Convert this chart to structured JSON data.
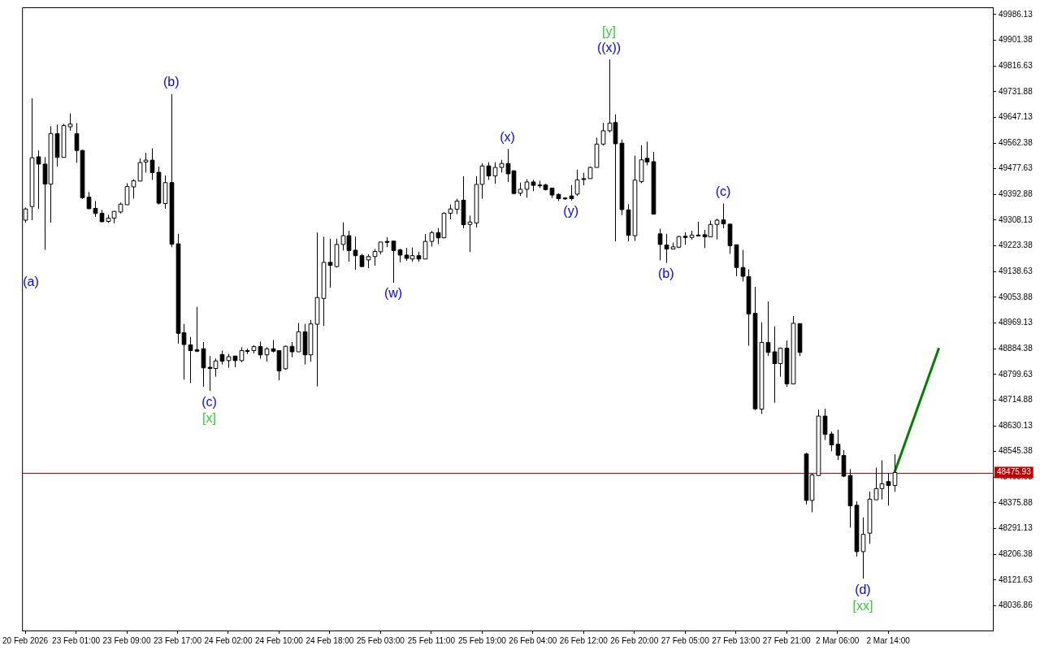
{
  "chart_data": {
    "type": "candlestick",
    "categories": [
      "20 Feb 2026",
      null,
      null,
      null,
      null,
      null,
      null,
      null,
      "23 Feb 01:00",
      null,
      null,
      null,
      null,
      null,
      null,
      null,
      "23 Feb 09:00",
      null,
      null,
      null,
      null,
      null,
      null,
      null,
      "23 Feb 17:00",
      null,
      null,
      null,
      null,
      null,
      null,
      null,
      "24 Feb 02:00",
      null,
      null,
      null,
      null,
      null,
      null,
      null,
      "24 Feb 10:00",
      null,
      null,
      null,
      null,
      null,
      null,
      null,
      "24 Feb 18:00",
      null,
      null,
      null,
      null,
      null,
      null,
      null,
      "25 Feb 03:00",
      null,
      null,
      null,
      null,
      null,
      null,
      null,
      "25 Feb 11:00",
      null,
      null,
      null,
      null,
      null,
      null,
      null,
      "25 Feb 19:00",
      null,
      null,
      null,
      null,
      null,
      null,
      null,
      "26 Feb 04:00",
      null,
      null,
      null,
      null,
      null,
      null,
      null,
      "26 Feb 12:00",
      null,
      null,
      null,
      null,
      null,
      null,
      null,
      "26 Feb 20:00",
      null,
      null,
      null,
      null,
      null,
      null,
      null,
      "27 Feb 05:00",
      null,
      null,
      null,
      null,
      null,
      null,
      null,
      "27 Feb 13:00",
      null,
      null,
      null,
      null,
      null,
      null,
      null,
      "27 Feb 21:00",
      null,
      null,
      null,
      null,
      null,
      null,
      null,
      "2 Mar 06:00",
      null,
      null,
      null,
      null,
      null,
      null,
      null,
      "2 Mar 14:00",
      null,
      null,
      null,
      null,
      null,
      null,
      null,
      null,
      null,
      null,
      null,
      null,
      null,
      null,
      null,
      null
    ],
    "ohlc": [
      [
        49308,
        49350,
        49300,
        49345
      ],
      [
        49353,
        49710,
        49308,
        49514
      ],
      [
        49517,
        49538,
        49345,
        49493
      ],
      [
        49493,
        49516,
        49210,
        49427
      ],
      [
        49427,
        49618,
        49300,
        49594
      ],
      [
        49593,
        49623,
        49485,
        49515
      ],
      [
        49515,
        49626,
        49515,
        49620
      ],
      [
        49616,
        49660,
        49603,
        49625
      ],
      [
        49593,
        49628,
        49497,
        49538
      ],
      [
        49538,
        49540,
        49378,
        49382
      ],
      [
        49384,
        49401,
        49344,
        49346
      ],
      [
        49347,
        49371,
        49319,
        49330
      ],
      [
        49331,
        49342,
        49301,
        49303
      ],
      [
        49304,
        49326,
        49299,
        49315
      ],
      [
        49315,
        49338,
        49298,
        49337
      ],
      [
        49335,
        49366,
        49330,
        49361
      ],
      [
        49359,
        49430,
        49359,
        49419
      ],
      [
        49418,
        49443,
        49379,
        49438
      ],
      [
        49437,
        49512,
        49437,
        49498
      ],
      [
        49500,
        49530,
        49465,
        49506
      ],
      [
        49506,
        49545,
        49441,
        49465
      ],
      [
        49466,
        49485,
        49360,
        49364
      ],
      [
        49363,
        49455,
        49346,
        49432
      ],
      [
        49432,
        49724,
        49219,
        49229
      ],
      [
        49230,
        49263,
        48901,
        48935
      ],
      [
        48937,
        48966,
        48782,
        48898
      ],
      [
        48897,
        48923,
        48771,
        48878
      ],
      [
        48881,
        49022,
        48873,
        48876
      ],
      [
        48884,
        48906,
        48759,
        48821
      ],
      [
        48823,
        48860,
        48745,
        48819
      ],
      [
        48819,
        48852,
        48792,
        48844
      ],
      [
        48865,
        48878,
        48832,
        48843
      ],
      [
        48845,
        48867,
        48821,
        48858
      ],
      [
        48860,
        48860,
        48823,
        48845
      ],
      [
        48845,
        48889,
        48840,
        48878
      ],
      [
        48878,
        48885,
        48867,
        48877
      ],
      [
        48878,
        48896,
        48869,
        48891
      ],
      [
        48891,
        48908,
        48851,
        48864
      ],
      [
        48864,
        48889,
        48842,
        48884
      ],
      [
        48884,
        48913,
        48872,
        48876
      ],
      [
        48878,
        48878,
        48780,
        48811
      ],
      [
        48818,
        48894,
        48815,
        48892
      ],
      [
        48892,
        48906,
        48856,
        48874
      ],
      [
        48874,
        48969,
        48874,
        48940
      ],
      [
        48940,
        48966,
        48832,
        48864
      ],
      [
        48864,
        48979,
        48842,
        48966
      ],
      [
        48965,
        49267,
        48760,
        49053
      ],
      [
        49050,
        49254,
        48959,
        49169
      ],
      [
        49169,
        49247,
        49085,
        49159
      ],
      [
        49155,
        49247,
        49152,
        49228
      ],
      [
        49228,
        49301,
        49208,
        49257
      ],
      [
        49257,
        49273,
        49171,
        49208
      ],
      [
        49209,
        49254,
        49144,
        49191
      ],
      [
        49191,
        49197,
        49155,
        49155
      ],
      [
        49177,
        49196,
        49150,
        49188
      ],
      [
        49188,
        49213,
        49158,
        49205
      ],
      [
        49204,
        49236,
        49196,
        49236
      ],
      [
        49238,
        49252,
        49219,
        49235
      ],
      [
        49239,
        49239,
        49102,
        49208
      ],
      [
        49210,
        49214,
        49169,
        49193
      ],
      [
        49193,
        49217,
        49174,
        49182
      ],
      [
        49180,
        49218,
        49171,
        49191
      ],
      [
        49191,
        49204,
        49171,
        49180
      ],
      [
        49180,
        49262,
        49180,
        49238
      ],
      [
        49238,
        49273,
        49221,
        49267
      ],
      [
        49267,
        49282,
        49229,
        49250
      ],
      [
        49250,
        49334,
        49248,
        49331
      ],
      [
        49331,
        49360,
        49311,
        49345
      ],
      [
        49344,
        49379,
        49328,
        49371
      ],
      [
        49374,
        49453,
        49281,
        49293
      ],
      [
        49294,
        49323,
        49203,
        49302
      ],
      [
        49299,
        49453,
        49284,
        49426
      ],
      [
        49426,
        49496,
        49379,
        49487
      ],
      [
        49487,
        49499,
        49441,
        49454
      ],
      [
        49454,
        49499,
        49428,
        49482
      ],
      [
        49482,
        49507,
        49465,
        49495
      ],
      [
        49495,
        49543,
        49434,
        49461
      ],
      [
        49471,
        49472,
        49394,
        49396
      ],
      [
        49397,
        49432,
        49388,
        49410
      ],
      [
        49410,
        49443,
        49382,
        49434
      ],
      [
        49434,
        49441,
        49404,
        49423
      ],
      [
        49424,
        49438,
        49414,
        49423
      ],
      [
        49424,
        49428,
        49406,
        49409
      ],
      [
        49414,
        49414,
        49381,
        49391
      ],
      [
        49393,
        49397,
        49371,
        49379
      ],
      [
        49381,
        49384,
        49375,
        49379
      ],
      [
        49388,
        49424,
        49373,
        49379
      ],
      [
        49394,
        49475,
        49388,
        49441
      ],
      [
        49445,
        49464,
        49423,
        49442
      ],
      [
        49445,
        49485,
        49445,
        49482
      ],
      [
        49482,
        49580,
        49482,
        49559
      ],
      [
        49559,
        49629,
        49554,
        49603
      ],
      [
        49603,
        49838,
        49597,
        49628
      ],
      [
        49630,
        49657,
        49238,
        49560
      ],
      [
        49562,
        49574,
        49325,
        49343
      ],
      [
        49342,
        49361,
        49238,
        49258
      ],
      [
        49257,
        49521,
        49240,
        49440
      ],
      [
        49435,
        49555,
        49430,
        49507
      ],
      [
        49512,
        49567,
        49489,
        49500
      ],
      [
        49501,
        49533,
        49328,
        49328
      ],
      [
        49263,
        49280,
        49176,
        49228
      ],
      [
        49226,
        49263,
        49167,
        49213
      ],
      [
        49213,
        49234,
        49212,
        49220
      ],
      [
        49219,
        49256,
        49216,
        49254
      ],
      [
        49255,
        49268,
        49227,
        49251
      ],
      [
        49251,
        49273,
        49244,
        49259
      ],
      [
        49259,
        49303,
        49256,
        49258
      ],
      [
        49260,
        49276,
        49216,
        49253
      ],
      [
        49253,
        49307,
        49253,
        49294
      ],
      [
        49294,
        49313,
        49245,
        49308
      ],
      [
        49309,
        49363,
        49281,
        49296
      ],
      [
        49295,
        49295,
        49197,
        49224
      ],
      [
        49227,
        49227,
        49123,
        49152
      ],
      [
        49152,
        49210,
        49106,
        49123
      ],
      [
        49122,
        49146,
        48894,
        48999
      ],
      [
        49001,
        49088,
        48682,
        48686
      ],
      [
        48685,
        48971,
        48669,
        48905
      ],
      [
        48905,
        49040,
        48860,
        48872
      ],
      [
        48874,
        48958,
        48706,
        48835
      ],
      [
        48835,
        48888,
        48792,
        48886
      ],
      [
        48886,
        48911,
        48758,
        48768
      ],
      [
        48768,
        48992,
        48768,
        48968
      ],
      [
        48967,
        48967,
        48860,
        48872
      ],
      [
        48537,
        48541,
        48371,
        48384
      ],
      [
        48384,
        48474,
        48345,
        48468
      ],
      [
        48466,
        48683,
        48466,
        48662
      ],
      [
        48662,
        48686,
        48583,
        48602
      ],
      [
        48603,
        48611,
        48546,
        48567
      ],
      [
        48569,
        48617,
        48517,
        48533
      ],
      [
        48532,
        48550,
        48461,
        48464
      ],
      [
        48466,
        48487,
        48294,
        48366
      ],
      [
        48368,
        48381,
        48199,
        48215
      ],
      [
        48215,
        48328,
        48126,
        48272
      ],
      [
        48276,
        48413,
        48241,
        48388
      ],
      [
        48386,
        48492,
        48386,
        48423
      ],
      [
        48423,
        48516,
        48387,
        48439
      ],
      [
        48446,
        48474,
        48367,
        48433
      ],
      [
        48433,
        48536,
        48412,
        48476
      ],
      null,
      null,
      null,
      null,
      null,
      null,
      null,
      null,
      null,
      null,
      null,
      null,
      null,
      null,
      null
    ],
    "series": [
      {
        "type": "line",
        "color": "#008000",
        "values": [
          null,
          null,
          null,
          null,
          null,
          null,
          null,
          null,
          null,
          null,
          null,
          null,
          null,
          null,
          null,
          null,
          null,
          null,
          null,
          null,
          null,
          null,
          null,
          null,
          null,
          null,
          null,
          null,
          null,
          null,
          null,
          null,
          null,
          null,
          null,
          null,
          null,
          null,
          null,
          null,
          null,
          null,
          null,
          null,
          null,
          null,
          null,
          null,
          null,
          null,
          null,
          null,
          null,
          null,
          null,
          null,
          null,
          null,
          null,
          null,
          null,
          null,
          null,
          null,
          null,
          null,
          null,
          null,
          null,
          null,
          null,
          null,
          null,
          null,
          null,
          null,
          null,
          null,
          null,
          null,
          null,
          null,
          null,
          null,
          null,
          null,
          null,
          null,
          null,
          null,
          null,
          null,
          null,
          null,
          null,
          null,
          null,
          null,
          null,
          null,
          null,
          null,
          null,
          null,
          null,
          null,
          null,
          null,
          null,
          null,
          null,
          null,
          null,
          null,
          null,
          null,
          null,
          null,
          null,
          null,
          null,
          null,
          null,
          null,
          null,
          null,
          null,
          null,
          null,
          null,
          null,
          null,
          null,
          null,
          null,
          null,
          null,
          48476,
          null,
          null,
          null,
          null,
          null,
          null,
          48887,
          null,
          null,
          null,
          null,
          null,
          null,
          null,
          null
        ]
      }
    ],
    "ylim": [
      47955,
      50010
    ],
    "yticks": [
      48036.86,
      48121.63,
      48206.38,
      48291.13,
      48375.88,
      48460.63,
      48545.38,
      48630.13,
      48714.88,
      48799.63,
      48884.38,
      48969.13,
      49053.88,
      49138.63,
      49223.38,
      49308.13,
      49392.88,
      49477.63,
      49562.38,
      49647.13,
      49731.88,
      49816.63,
      49901.38,
      49986.13
    ],
    "ref_lines": [
      {
        "axis": "y",
        "value": 48475.93,
        "label": "48475.93",
        "color": "#c00000"
      }
    ],
    "annotations": [
      "(a)",
      "(b)",
      "(c)",
      "[x]",
      "(w)",
      "(x)",
      "(y)",
      "((x))",
      "[y]",
      "(b)",
      "(c)",
      "(d)",
      "[xx]"
    ]
  }
}
